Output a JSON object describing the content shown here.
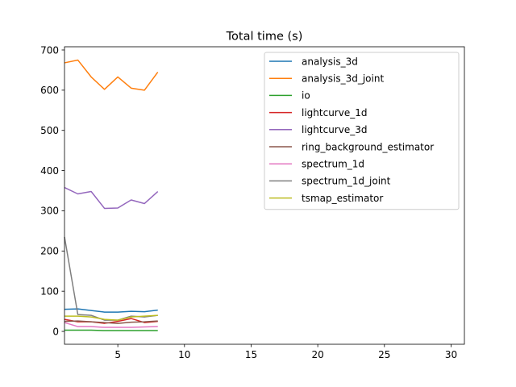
{
  "chart_data": {
    "type": "line",
    "title": "Total time (s)",
    "xlabel": "",
    "ylabel": "",
    "xlim": [
      1,
      31
    ],
    "ylim": [
      -32,
      708
    ],
    "xticks": [
      5,
      10,
      15,
      20,
      25,
      30
    ],
    "yticks": [
      0,
      100,
      200,
      300,
      400,
      500,
      600,
      700
    ],
    "grid": false,
    "legend_position": "top-right",
    "x": [
      1,
      2,
      3,
      4,
      5,
      6,
      7,
      8
    ],
    "series": [
      {
        "name": "analysis_3d",
        "color": "#1f77b4",
        "values": [
          55,
          56,
          52,
          48,
          48,
          50,
          49,
          53
        ]
      },
      {
        "name": "analysis_3d_joint",
        "color": "#ff7f0e",
        "values": [
          668,
          675,
          633,
          602,
          633,
          605,
          600,
          645
        ]
      },
      {
        "name": "io",
        "color": "#2ca02c",
        "values": [
          3,
          3,
          3,
          2,
          2,
          2,
          2,
          2
        ]
      },
      {
        "name": "lightcurve_1d",
        "color": "#d62728",
        "values": [
          30,
          24,
          24,
          20,
          25,
          32,
          22,
          25
        ]
      },
      {
        "name": "lightcurve_3d",
        "color": "#9467bd",
        "values": [
          358,
          342,
          348,
          306,
          307,
          327,
          318,
          348
        ]
      },
      {
        "name": "ring_background_estimator",
        "color": "#8c564b",
        "values": [
          25,
          26,
          24,
          22,
          20,
          23,
          24,
          26
        ]
      },
      {
        "name": "spectrum_1d",
        "color": "#e377c2",
        "values": [
          22,
          12,
          12,
          10,
          10,
          10,
          11,
          12
        ]
      },
      {
        "name": "spectrum_1d_joint",
        "color": "#7f7f7f",
        "values": [
          235,
          42,
          40,
          28,
          28,
          38,
          36,
          40
        ]
      },
      {
        "name": "tsmap_estimator",
        "color": "#bcbd22",
        "values": [
          38,
          38,
          36,
          30,
          28,
          36,
          38,
          40
        ]
      }
    ]
  }
}
